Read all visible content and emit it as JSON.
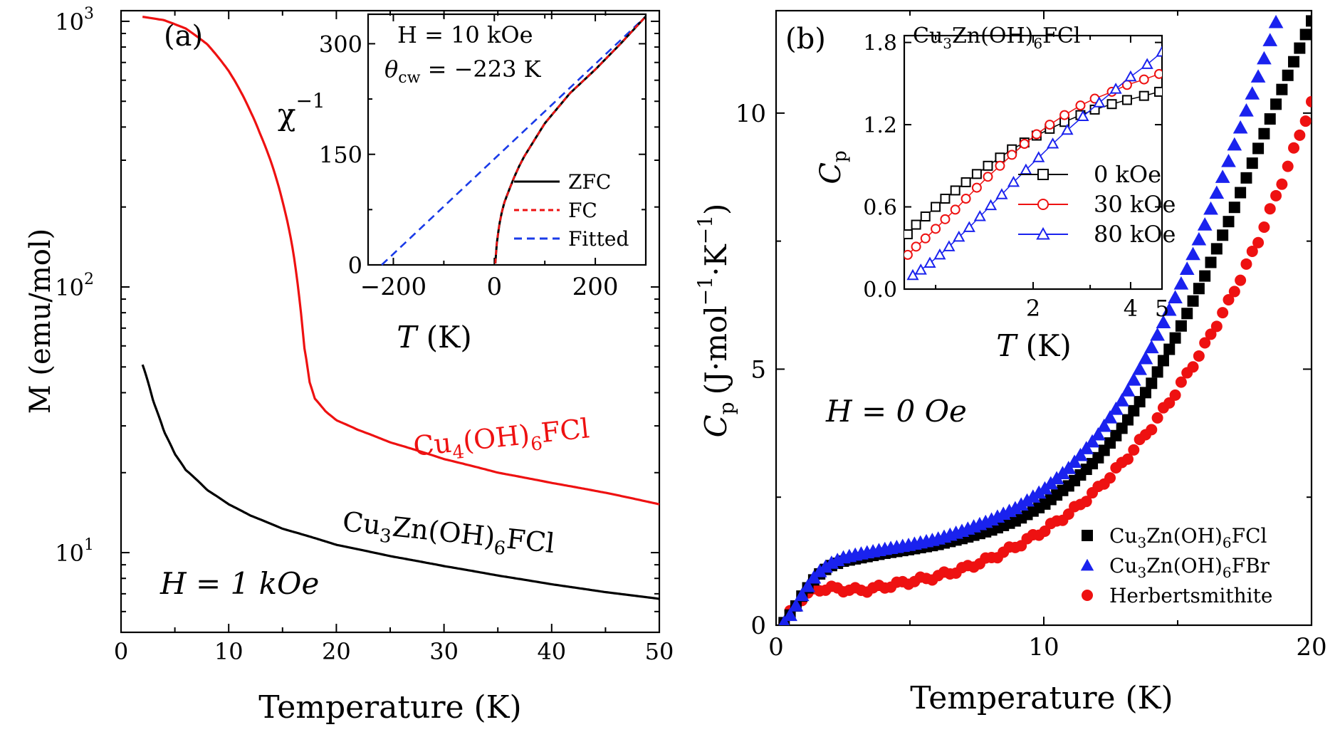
{
  "chart_data": [
    {
      "panel": "(a)",
      "type": "line",
      "xlabel": "Temperature (K)",
      "ylabel": "M (emu/mol)",
      "xlim": [
        0,
        50
      ],
      "ylim_log10": [
        0.7,
        3.04
      ],
      "yscale": "log",
      "xticks": [
        "0",
        "10",
        "20",
        "30",
        "40",
        "50"
      ],
      "yticks": [
        "10",
        "10",
        "10"
      ],
      "ytick_exponents": [
        "1",
        "2",
        "3"
      ],
      "annotation": "H = 1 kOe",
      "series": [
        {
          "name": "Cu4(OH)6FCl",
          "label_base": "Cu",
          "label_sub1": "4",
          "label_mid": "(OH)",
          "label_sub2": "6",
          "label_end": "FCl",
          "color": "#ee1111",
          "x": [
            2,
            4,
            6,
            8,
            10,
            12,
            13,
            14,
            15,
            16,
            16.5,
            17,
            17.5,
            18,
            19,
            20,
            22,
            25,
            30,
            35,
            40,
            45,
            50
          ],
          "y": [
            1040,
            1010,
            940,
            820,
            650,
            460,
            370,
            290,
            210,
            135,
            95,
            60,
            44,
            38,
            34,
            31.5,
            29,
            26,
            22.5,
            20,
            18.3,
            16.8,
            15.2
          ]
        },
        {
          "name": "Cu3Zn(OH)6FCl",
          "label_base": "Cu",
          "label_sub1": "3",
          "label_mid": "Zn(OH)",
          "label_sub2": "6",
          "label_end": "FCl",
          "color": "#000000",
          "x": [
            2,
            3,
            4,
            5,
            6,
            8,
            10,
            12,
            15,
            20,
            25,
            30,
            35,
            40,
            45,
            50
          ],
          "y": [
            51,
            37,
            28.5,
            23.5,
            20.5,
            17.2,
            15.2,
            13.8,
            12.3,
            10.7,
            9.7,
            8.9,
            8.2,
            7.6,
            7.1,
            6.7
          ]
        }
      ],
      "inset": {
        "type": "line",
        "xlabel_italic": "T",
        "xlabel_rest": " (K)",
        "ylabel": "χ",
        "ylabel_exp": "−1",
        "xlim": [
          -250,
          300
        ],
        "ylim": [
          0,
          340
        ],
        "xticks": [
          "−200",
          "0",
          "200"
        ],
        "yticks": [
          "0",
          "150",
          "300"
        ],
        "ann_h": "H = 10 kOe",
        "ann_theta": "θ",
        "ann_theta_sub": "cw",
        "ann_theta_val": " = −223 K",
        "series": [
          {
            "name": "ZFC",
            "color": "#000000",
            "style": "solid",
            "x": [
              2,
              5,
              10,
              15,
              20,
              30,
              40,
              50,
              60,
              80,
              100,
              150,
              200,
              250,
              300
            ],
            "y": [
              2,
              30,
              55,
              72,
              85,
              103,
              120,
              135,
              148,
              170,
              192,
              233,
              265,
              300,
              337
            ]
          },
          {
            "name": "FC",
            "color": "#ee1111",
            "style": "dashed",
            "x": [
              2,
              5,
              10,
              15,
              20,
              30,
              40,
              50,
              60,
              80,
              100,
              150,
              200,
              250,
              300
            ],
            "y": [
              2,
              30,
              55,
              72,
              85,
              103,
              120,
              135,
              148,
              170,
              192,
              233,
              265,
              300,
              337
            ]
          },
          {
            "name": "Fitted",
            "color": "#1a3be8",
            "style": "dashed",
            "x": [
              -223,
              300
            ],
            "y": [
              0,
              337
            ]
          }
        ]
      }
    },
    {
      "panel": "(b)",
      "type": "scatter",
      "xlabel": "Temperature (K)",
      "ylabel_main": "C",
      "ylabel_sub": "p",
      "ylabel_units": "(J·mol",
      "ylabel_exp1": "−1",
      "ylabel_mid": "·K",
      "ylabel_exp2": "−1",
      "ylabel_close": ")",
      "xlim": [
        0,
        20
      ],
      "ylim": [
        0,
        12
      ],
      "xticks": [
        "0",
        "10",
        "20"
      ],
      "yticks": [
        "0",
        "5",
        "10"
      ],
      "annotation": "H = 0 Oe",
      "series": [
        {
          "name": "Cu3Zn(OH)6FCl",
          "label_base": "Cu",
          "label_sub1": "3",
          "label_mid": "Zn(OH)",
          "label_sub2": "6",
          "label_end": "FCl",
          "marker": "square",
          "color": "#000000",
          "x": [
            0.3,
            0.6,
            1,
            1.5,
            2,
            2.5,
            3,
            3.5,
            4,
            5,
            6,
            7,
            8,
            9,
            10,
            11,
            12,
            13,
            14,
            15,
            16,
            17,
            18,
            19,
            20
          ],
          "y": [
            0.05,
            0.25,
            0.6,
            0.95,
            1.15,
            1.25,
            1.3,
            1.35,
            1.4,
            1.48,
            1.57,
            1.7,
            1.85,
            2.05,
            2.35,
            2.75,
            3.25,
            3.9,
            4.7,
            5.7,
            6.8,
            8.0,
            9.3,
            10.6,
            11.8
          ]
        },
        {
          "name": "Cu3Zn(OH)6FBr",
          "label_base": "Cu",
          "label_sub1": "3",
          "label_mid": "Zn(OH)",
          "label_sub2": "6",
          "label_end": "FBr",
          "marker": "triangle",
          "color": "#1a22ee",
          "x": [
            0.3,
            0.6,
            1,
            1.5,
            2,
            2.5,
            3,
            3.5,
            4,
            5,
            6,
            7,
            8,
            9,
            10,
            11,
            12,
            13,
            14,
            15,
            16,
            17,
            18,
            19,
            20
          ],
          "y": [
            0.05,
            0.25,
            0.62,
            1.0,
            1.2,
            1.32,
            1.38,
            1.43,
            1.48,
            1.57,
            1.68,
            1.85,
            2.05,
            2.3,
            2.65,
            3.1,
            3.7,
            4.45,
            5.4,
            6.5,
            7.8,
            9.2,
            10.7,
            12.3,
            14.0
          ]
        },
        {
          "name": "Herbertsmithite",
          "marker": "circle",
          "color": "#ee1111",
          "x": [
            0.3,
            0.6,
            1,
            1.5,
            2,
            2.5,
            3,
            3.5,
            4,
            5,
            6,
            7,
            8,
            9,
            10,
            11,
            12,
            13,
            14,
            15,
            16,
            17,
            18,
            19,
            20
          ],
          "y": [
            0.05,
            0.3,
            0.55,
            0.7,
            0.72,
            0.7,
            0.68,
            0.7,
            0.75,
            0.85,
            0.95,
            1.1,
            1.3,
            1.55,
            1.85,
            2.2,
            2.65,
            3.2,
            3.85,
            4.6,
            5.45,
            6.4,
            7.5,
            8.8,
            10.2
          ]
        }
      ],
      "inset": {
        "type": "scatter",
        "title_base": "Cu",
        "title_sub1": "3",
        "title_mid": "Zn(OH)",
        "title_sub2": "6",
        "title_end": "FCl",
        "xlabel_italic": "T",
        "xlabel_rest": " (K)",
        "ylabel_main": "C",
        "ylabel_sub": "p",
        "xscale": "log",
        "xlim": [
          0.8,
          5
        ],
        "ylim": [
          0,
          1.85
        ],
        "xticks": [
          "2",
          "4",
          "5"
        ],
        "xtick_vals": [
          2,
          4,
          5
        ],
        "yticks": [
          "0.0",
          "0.6",
          "1.2",
          "1.8"
        ],
        "series": [
          {
            "name": "0 kOe",
            "marker": "square",
            "color": "#000000",
            "x": [
              0.82,
              0.87,
              0.93,
              1.0,
              1.07,
              1.15,
              1.24,
              1.34,
              1.45,
              1.58,
              1.72,
              1.88,
              2.05,
              2.25,
              2.5,
              2.8,
              3.1,
              3.5,
              3.9,
              4.4,
              4.9
            ],
            "y": [
              0.4,
              0.47,
              0.53,
              0.6,
              0.66,
              0.72,
              0.78,
              0.84,
              0.9,
              0.96,
              1.02,
              1.07,
              1.12,
              1.17,
              1.22,
              1.27,
              1.31,
              1.35,
              1.38,
              1.41,
              1.44
            ]
          },
          {
            "name": "30 kOe",
            "marker": "circle",
            "color": "#ee1111",
            "x": [
              0.82,
              0.87,
              0.93,
              1.0,
              1.07,
              1.15,
              1.24,
              1.34,
              1.45,
              1.58,
              1.72,
              1.88,
              2.05,
              2.25,
              2.5,
              2.8,
              3.1,
              3.5,
              3.9,
              4.4,
              4.9
            ],
            "y": [
              0.25,
              0.31,
              0.37,
              0.44,
              0.51,
              0.58,
              0.66,
              0.74,
              0.82,
              0.9,
              0.98,
              1.06,
              1.13,
              1.2,
              1.27,
              1.34,
              1.39,
              1.44,
              1.49,
              1.53,
              1.57
            ]
          },
          {
            "name": "80 kOe",
            "marker": "triangle",
            "color": "#1a22ee",
            "x": [
              0.85,
              0.9,
              0.96,
              1.03,
              1.1,
              1.18,
              1.27,
              1.37,
              1.48,
              1.6,
              1.74,
              1.9,
              2.08,
              2.3,
              2.55,
              2.85,
              3.2,
              3.6,
              4.0,
              4.5,
              5.0
            ],
            "y": [
              0.1,
              0.14,
              0.19,
              0.25,
              0.31,
              0.38,
              0.45,
              0.53,
              0.61,
              0.69,
              0.78,
              0.87,
              0.96,
              1.06,
              1.16,
              1.26,
              1.36,
              1.46,
              1.55,
              1.64,
              1.73
            ]
          }
        ]
      }
    }
  ]
}
